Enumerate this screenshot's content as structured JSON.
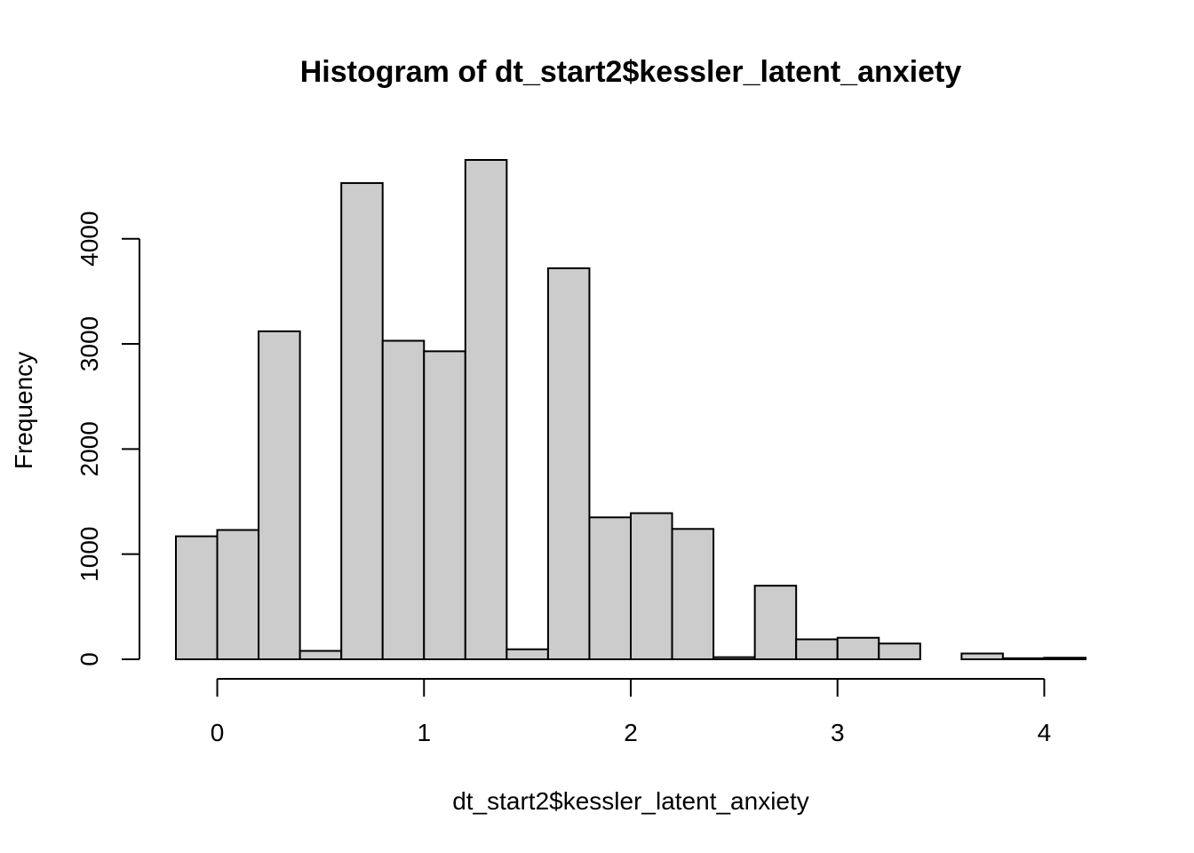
{
  "chart_data": {
    "type": "bar",
    "title": "Histogram of dt_start2$kessler_latent_anxiety",
    "xlabel": "dt_start2$kessler_latent_anxiety",
    "ylabel": "Frequency",
    "bin_edges": [
      -0.2,
      0.0,
      0.2,
      0.4,
      0.6,
      0.8,
      1.0,
      1.2,
      1.4,
      1.6,
      1.8,
      2.0,
      2.2,
      2.4,
      2.6,
      2.8,
      3.0,
      3.2,
      3.4,
      3.6,
      3.8,
      4.0,
      4.2
    ],
    "values": [
      1170,
      1230,
      3120,
      80,
      4530,
      3030,
      2930,
      4750,
      95,
      3720,
      1350,
      1390,
      1240,
      20,
      700,
      190,
      205,
      150,
      0,
      55,
      10,
      15
    ],
    "xlim": [
      -0.2,
      4.2
    ],
    "ylim": [
      0,
      4750
    ],
    "x_ticks": [
      0,
      1,
      2,
      3,
      4
    ],
    "x_tick_labels": [
      "0",
      "1",
      "2",
      "3",
      "4"
    ],
    "y_ticks": [
      0,
      1000,
      2000,
      3000,
      4000
    ],
    "y_tick_labels": [
      "0",
      "1000",
      "2000",
      "3000",
      "4000"
    ],
    "bar_fill": "#cccccc",
    "bar_stroke": "#000000",
    "grid": false
  }
}
